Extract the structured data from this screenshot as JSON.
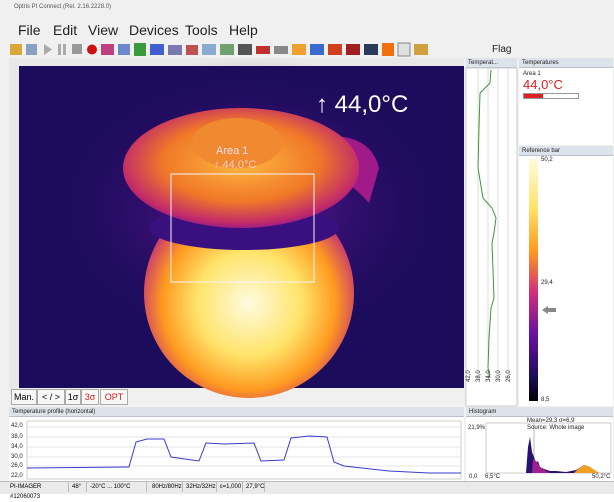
{
  "window": {
    "title": "Optris PI Connect (Rel. 2.16.2228.0)"
  },
  "menu": [
    "File",
    "Edit",
    "View",
    "Devices",
    "Tools",
    "Help"
  ],
  "toolbar": {
    "flag": "Flag"
  },
  "thermal_image": {
    "max_label": "↑ 44,0°C",
    "area_name": "Area 1",
    "area_value": "↑ 44,0°C"
  },
  "image_buttons": [
    "Man.",
    "< / >",
    "1σ",
    "3σ",
    "OPT"
  ],
  "vertical_profile": {
    "title": "Temperat...",
    "axis_labels": [
      "42,0",
      "38,0",
      "34,0",
      "30,0",
      "26,0"
    ]
  },
  "temperatures": {
    "title": "Temperatures",
    "area_name": "Area 1",
    "value": "44,0°C"
  },
  "reference_bar": {
    "title": "Reference bar",
    "labels": [
      "50,2",
      "29,4",
      "8,5"
    ]
  },
  "horizontal_profile": {
    "title": "Temperature profile (horizontal)",
    "axis_labels": [
      "42,0",
      "38,0",
      "34,0",
      "30,0",
      "26,0",
      "22,0"
    ]
  },
  "histogram": {
    "title": "Histogram",
    "stats": "Mean=29,3 σ=6,9",
    "source": "Source: Whole image",
    "max_percent": "21,9%",
    "zero": "0,0",
    "min_temp": "6,5°C",
    "max_temp": "50,2°C"
  },
  "status_bar": [
    "PI-IMAGER #12060073",
    "48°",
    "-20°C ... 100°C",
    "80Hz/80Hz",
    "32Hz/32Hz",
    "ε=1,000",
    "27,9°C"
  ]
}
